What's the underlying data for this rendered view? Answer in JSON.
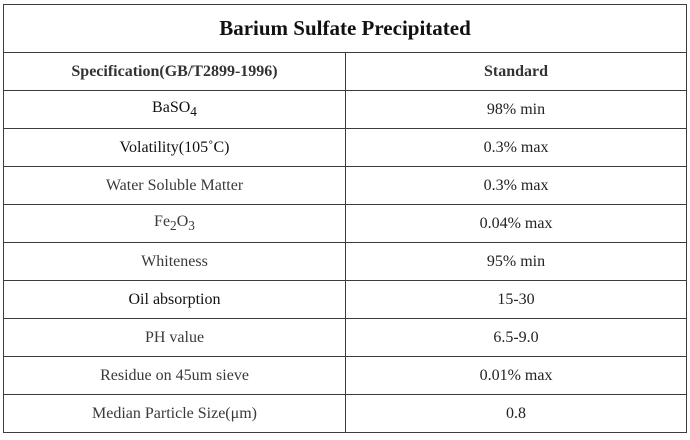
{
  "title": "Barium Sulfate Precipitated",
  "header": {
    "specification": "Specification(GB/T2899-1996)",
    "standard": "Standard"
  },
  "rows": [
    {
      "base": "BaSO",
      "sub": "4",
      "param": "BaSO4",
      "value": "98% min",
      "tone": "dark"
    },
    {
      "param": "Volatility(105˚C)",
      "value": "0.3% max",
      "tone": "dark"
    },
    {
      "param": "Water Soluble Matter",
      "value": "0.3% max",
      "tone": "light"
    },
    {
      "base": "Fe",
      "sub": "2",
      "tail": "O",
      "sub2": "3",
      "param": "Fe2O3",
      "value": "0.04% max",
      "tone": "light"
    },
    {
      "param": "Whiteness",
      "value": "95% min",
      "tone": "light"
    },
    {
      "param": "Oil absorption",
      "value": "15-30",
      "tone": "dark"
    },
    {
      "param": "PH value",
      "value": "6.5-9.0",
      "tone": "light"
    },
    {
      "param": "Residue on 45um sieve",
      "value": "0.01% max",
      "tone": "light"
    },
    {
      "param": "Median Particle Size(μm)",
      "value": "0.8",
      "tone": "light"
    }
  ]
}
